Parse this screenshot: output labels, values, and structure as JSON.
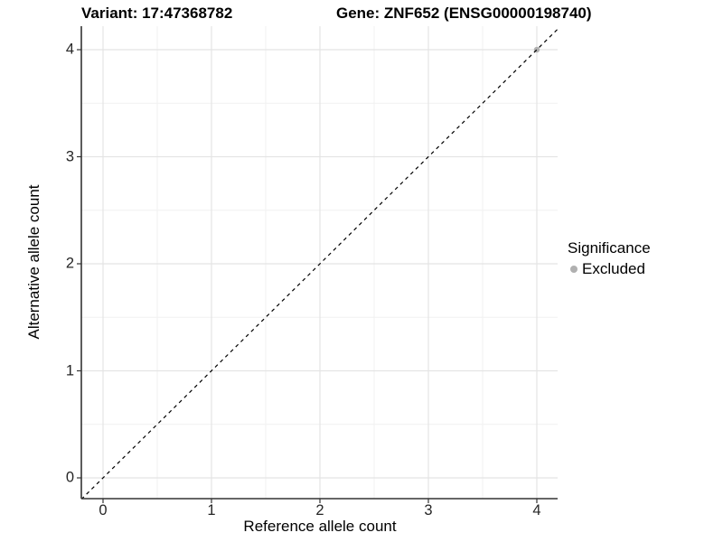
{
  "header": {
    "title_left": "Variant: 17:47368782",
    "title_right": "Gene: ZNF652 (ENSG00000198740)"
  },
  "chart_data": {
    "type": "scatter",
    "title_left": "Variant: 17:47368782",
    "title_right": "Gene: ZNF652 (ENSG00000198740)",
    "xlabel": "Reference allele count",
    "ylabel": "Alternative allele count",
    "xlim": [
      -0.2,
      4.2
    ],
    "ylim": [
      -0.2,
      4.2
    ],
    "x_ticks": [
      0,
      1,
      2,
      3,
      4
    ],
    "y_ticks": [
      0,
      1,
      2,
      3,
      4
    ],
    "grid": {
      "major": true,
      "minor": true,
      "major_color": "#e4e4e4",
      "minor_color": "#f1f1f1"
    },
    "identity_line": {
      "style": "dashed",
      "from": [
        -0.2,
        -0.2
      ],
      "to": [
        4.2,
        4.2
      ],
      "color": "#000000"
    },
    "series": [
      {
        "name": "Excluded",
        "color": "#b0b0b0",
        "points": [
          [
            4,
            4
          ]
        ]
      }
    ],
    "legend": {
      "position": "right",
      "title": "Significance",
      "items": [
        {
          "label": "Excluded",
          "color": "#b0b0b0"
        }
      ]
    },
    "axis_color": "#333333"
  }
}
